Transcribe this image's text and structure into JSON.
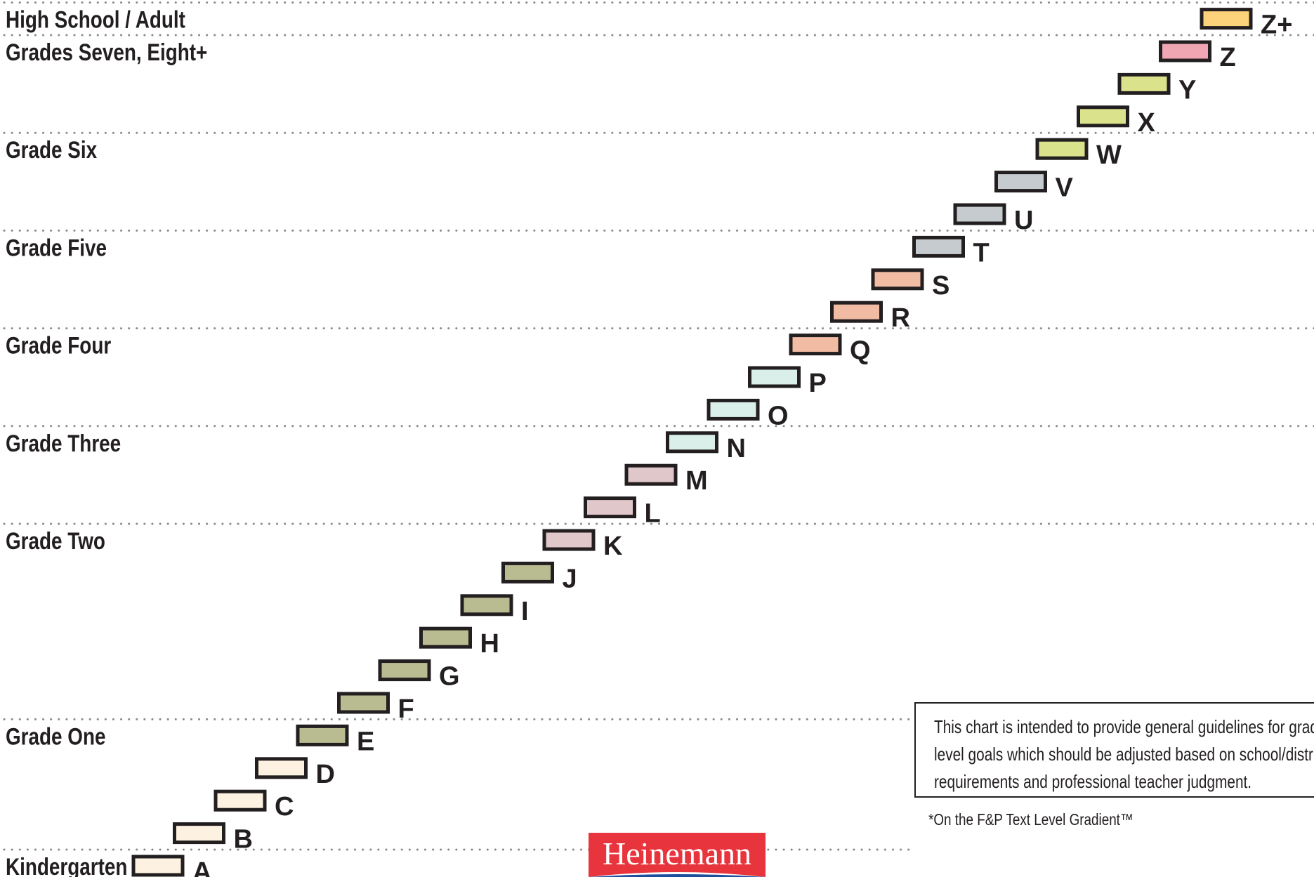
{
  "chart_data": {
    "type": "bar",
    "grades": [
      "Kindergarten",
      "Grade One",
      "Grade Two",
      "Grade Three",
      "Grade Four",
      "Grade Five",
      "Grade Six",
      "Grades Seven, Eight+",
      "High School / Adult"
    ],
    "levels": [
      {
        "level": "A",
        "grade": "Kindergarten",
        "color": "#fdf1e1"
      },
      {
        "level": "B",
        "grade": "Kindergarten",
        "color": "#fdf1e1"
      },
      {
        "level": "C",
        "grade": "Kindergarten",
        "color": "#fdf1e1"
      },
      {
        "level": "D",
        "grade": "Kindergarten",
        "color": "#fdf1e1"
      },
      {
        "level": "E",
        "grade": "Grade One",
        "color": "#b9bc91"
      },
      {
        "level": "F",
        "grade": "Grade One",
        "color": "#b9bc91"
      },
      {
        "level": "G",
        "grade": "Grade One",
        "color": "#b9bc91"
      },
      {
        "level": "H",
        "grade": "Grade One",
        "color": "#b9bc91"
      },
      {
        "level": "I",
        "grade": "Grade One",
        "color": "#b9bc91"
      },
      {
        "level": "J",
        "grade": "Grade One",
        "color": "#b9bc91"
      },
      {
        "level": "K",
        "grade": "Grade Two",
        "color": "#dfc7ca"
      },
      {
        "level": "L",
        "grade": "Grade Two",
        "color": "#dfc7ca"
      },
      {
        "level": "M",
        "grade": "Grade Two",
        "color": "#dfc7ca"
      },
      {
        "level": "N",
        "grade": "Grade Three",
        "color": "#dbefea"
      },
      {
        "level": "O",
        "grade": "Grade Three",
        "color": "#dbefea"
      },
      {
        "level": "P",
        "grade": "Grade Three",
        "color": "#dbefea"
      },
      {
        "level": "Q",
        "grade": "Grade Four",
        "color": "#f1bba4"
      },
      {
        "level": "R",
        "grade": "Grade Four",
        "color": "#f1bba4"
      },
      {
        "level": "S",
        "grade": "Grade Four",
        "color": "#f1bba4"
      },
      {
        "level": "T",
        "grade": "Grade Five",
        "color": "#c5cbce"
      },
      {
        "level": "U",
        "grade": "Grade Five",
        "color": "#c5cbce"
      },
      {
        "level": "V",
        "grade": "Grade Five",
        "color": "#c5cbce"
      },
      {
        "level": "W",
        "grade": "Grade Six",
        "color": "#dbe28c"
      },
      {
        "level": "X",
        "grade": "Grade Six",
        "color": "#dbe28c"
      },
      {
        "level": "Y",
        "grade": "Grade Six",
        "color": "#dbe28c"
      },
      {
        "level": "Z",
        "grade": "Grades Seven, Eight+",
        "color": "#f1a6b3"
      },
      {
        "level": "Z+",
        "grade": "High School / Adult",
        "color": "#fcd27a"
      }
    ]
  },
  "note": {
    "lines": [
      "This chart is intended to provide general guidelines for grade",
      "level goals which should be adjusted based on school/district",
      "requirements and professional teacher judgment."
    ]
  },
  "footnote": "*On the F&P Text Level Gradient™",
  "logo": {
    "text": "Heinemann",
    "color": "#e8343c"
  }
}
